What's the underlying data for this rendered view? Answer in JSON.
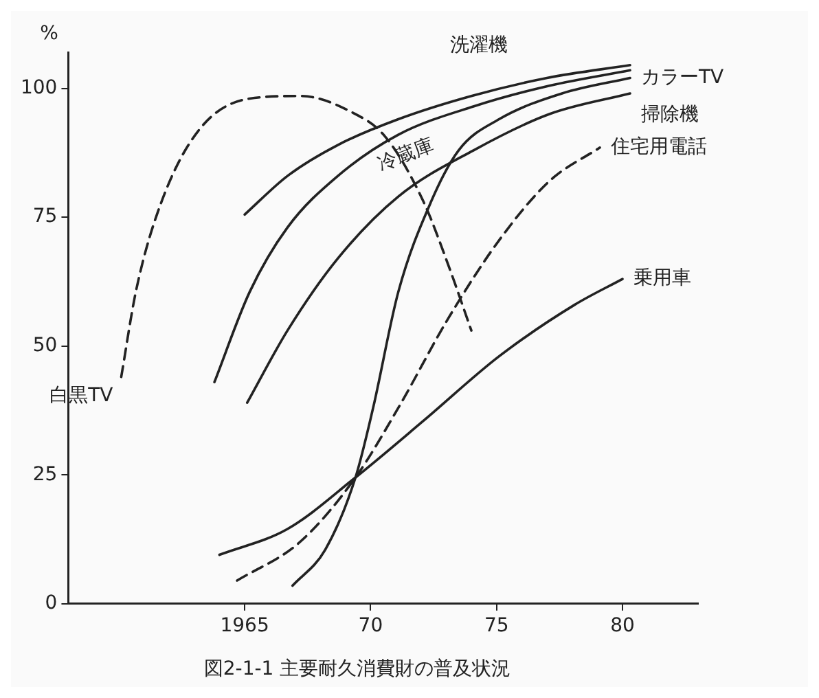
{
  "chart_data": {
    "type": "line",
    "title": "図2-1-1 主要耐久消費財の普及状況",
    "ylabel": "%",
    "xlim": [
      1958,
      1983
    ],
    "xticks": [
      {
        "value": 1965,
        "label": "1965"
      },
      {
        "value": 1970,
        "label": "70"
      },
      {
        "value": 1975,
        "label": "75"
      },
      {
        "value": 1980,
        "label": "80"
      }
    ],
    "ylim": [
      0,
      107
    ],
    "yticks": [
      0,
      25,
      50,
      75,
      100
    ],
    "grid": false,
    "legend": false,
    "marker": "none",
    "series": [
      {
        "name": "白黒TV",
        "color": "#222222",
        "line_style": "dashed",
        "x": [
          1960.1,
          1960.7,
          1961.7,
          1963.2,
          1965.2,
          1967.2,
          1969.2,
          1970.6,
          1972.1,
          1973.1,
          1974.0
        ],
        "values": [
          44,
          61,
          78,
          92,
          98,
          98.5,
          95.5,
          90.5,
          78,
          65.5,
          53
        ]
      },
      {
        "name": "洗濯機",
        "color": "#222222",
        "line_style": "solid",
        "x": [
          1965,
          1966.7,
          1968.7,
          1971.1,
          1974,
          1977,
          1980.3
        ],
        "values": [
          75.5,
          83,
          89,
          94,
          98.5,
          102,
          104.5
        ]
      },
      {
        "name": "冷蔵庫",
        "color": "#222222",
        "line_style": "solid",
        "x": [
          1963.8,
          1965.2,
          1966.7,
          1968.7,
          1971.1,
          1974.1,
          1977.1,
          1980.3
        ],
        "values": [
          43,
          60.5,
          73,
          83,
          91,
          96.5,
          100.5,
          103.5
        ]
      },
      {
        "name": "カラーTV",
        "color": "#222222",
        "line_style": "solid",
        "x": [
          1966.9,
          1968.2,
          1969.4,
          1970.1,
          1971.1,
          1972.4,
          1973.5,
          1975.1,
          1977.6,
          1980.3
        ],
        "values": [
          3.5,
          10.5,
          24.5,
          38,
          60.5,
          78,
          88,
          94,
          99,
          102
        ]
      },
      {
        "name": "掃除機",
        "color": "#222222",
        "line_style": "solid",
        "x": [
          1965.1,
          1966.7,
          1968.7,
          1971.1,
          1974.1,
          1977.1,
          1980.3
        ],
        "values": [
          39,
          53,
          67,
          79,
          88,
          95,
          99
        ]
      },
      {
        "name": "住宅用電話",
        "color": "#222222",
        "line_style": "dashed",
        "x": [
          1964.7,
          1967.2,
          1969.4,
          1971.1,
          1973.1,
          1975.1,
          1977.1,
          1979.1
        ],
        "values": [
          4.5,
          12,
          24.5,
          38,
          55.5,
          70.5,
          82,
          88.5
        ]
      },
      {
        "name": "乗用車",
        "color": "#222222",
        "line_style": "solid",
        "x": [
          1964,
          1966.7,
          1969.4,
          1972.1,
          1975.1,
          1978.1,
          1980
        ],
        "values": [
          9.5,
          14.5,
          24.5,
          35.5,
          48,
          58,
          63
        ]
      }
    ]
  }
}
